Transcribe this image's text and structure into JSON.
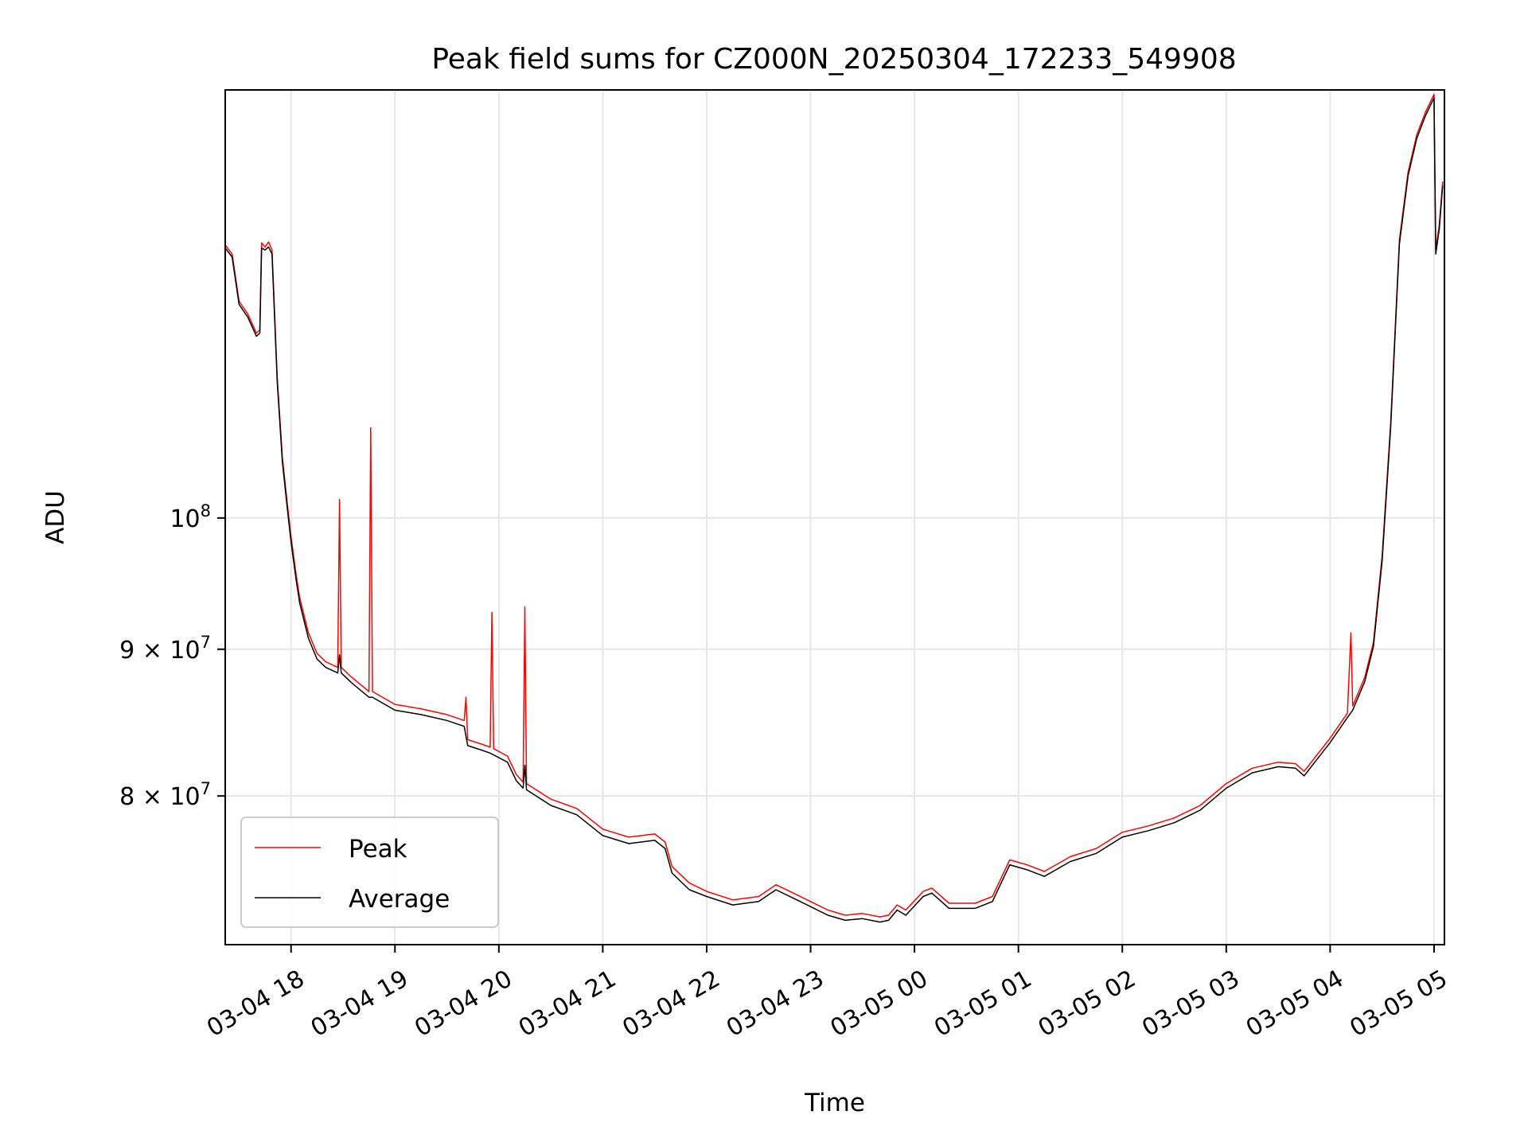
{
  "chart_data": {
    "type": "line",
    "title": "Peak field sums for CZ000N_20250304_172233_549908",
    "xlabel": "Time",
    "ylabel": "ADU",
    "x_axis": {
      "kind": "datetime",
      "start": "2025-03-04 17:22",
      "end": "2025-03-05 05:06",
      "ticks": [
        {
          "t": "2025-03-04 18:00",
          "label": "03-04 18"
        },
        {
          "t": "2025-03-04 19:00",
          "label": "03-04 19"
        },
        {
          "t": "2025-03-04 20:00",
          "label": "03-04 20"
        },
        {
          "t": "2025-03-04 21:00",
          "label": "03-04 21"
        },
        {
          "t": "2025-03-04 22:00",
          "label": "03-04 22"
        },
        {
          "t": "2025-03-04 23:00",
          "label": "03-04 23"
        },
        {
          "t": "2025-03-05 00:00",
          "label": "03-05 00"
        },
        {
          "t": "2025-03-05 01:00",
          "label": "03-05 01"
        },
        {
          "t": "2025-03-05 02:00",
          "label": "03-05 02"
        },
        {
          "t": "2025-03-05 03:00",
          "label": "03-05 03"
        },
        {
          "t": "2025-03-05 04:00",
          "label": "03-05 04"
        },
        {
          "t": "2025-03-05 05:00",
          "label": "03-05 05"
        }
      ]
    },
    "y_axis": {
      "scale": "log",
      "ylim": [
        71000000,
        141000000
      ],
      "ticks": [
        {
          "v": 80000000,
          "base": "8 × 10",
          "exp": "7"
        },
        {
          "v": 90000000,
          "base": "9 × 10",
          "exp": "7"
        },
        {
          "v": 100000000,
          "base": "10",
          "exp": "8"
        }
      ]
    },
    "grid": true,
    "legend": {
      "position": "lower-left"
    },
    "series": [
      {
        "name": "Peak",
        "color": "#ff0000",
        "points": [
          [
            "2025-03-04 17:22",
            124500000
          ],
          [
            "2025-03-04 17:26",
            123600000
          ],
          [
            "2025-03-04 17:30",
            119000000
          ],
          [
            "2025-03-04 17:35",
            117800000
          ],
          [
            "2025-03-04 17:40",
            116000000
          ],
          [
            "2025-03-04 17:42",
            116300000
          ],
          [
            "2025-03-04 17:43",
            124700000
          ],
          [
            "2025-03-04 17:45",
            124300000
          ],
          [
            "2025-03-04 17:47",
            124800000
          ],
          [
            "2025-03-04 17:49",
            124000000
          ],
          [
            "2025-03-04 17:52",
            112000000
          ],
          [
            "2025-03-04 17:55",
            105000000
          ],
          [
            "2025-03-04 17:58",
            101000000
          ],
          [
            "2025-03-04 18:00",
            98500000
          ],
          [
            "2025-03-04 18:03",
            95500000
          ],
          [
            "2025-03-04 18:05",
            93800000
          ],
          [
            "2025-03-04 18:10",
            91200000
          ],
          [
            "2025-03-04 18:15",
            89700000
          ],
          [
            "2025-03-04 18:20",
            89100000
          ],
          [
            "2025-03-04 18:27",
            88700000
          ],
          [
            "2025-03-04 18:28",
            101500000
          ],
          [
            "2025-03-04 18:29",
            88700000
          ],
          [
            "2025-03-04 18:35",
            88000000
          ],
          [
            "2025-03-04 18:45",
            87000000
          ],
          [
            "2025-03-04 18:46",
            107500000
          ],
          [
            "2025-03-04 18:47",
            87000000
          ],
          [
            "2025-03-04 19:00",
            86100000
          ],
          [
            "2025-03-04 19:15",
            85800000
          ],
          [
            "2025-03-04 19:30",
            85400000
          ],
          [
            "2025-03-04 19:40",
            85000000
          ],
          [
            "2025-03-04 19:41",
            86600000
          ],
          [
            "2025-03-04 19:42",
            83700000
          ],
          [
            "2025-03-04 19:50",
            83400000
          ],
          [
            "2025-03-04 19:55",
            83200000
          ],
          [
            "2025-03-04 19:56",
            92700000
          ],
          [
            "2025-03-04 19:57",
            83100000
          ],
          [
            "2025-03-04 20:05",
            82600000
          ],
          [
            "2025-03-04 20:10",
            81400000
          ],
          [
            "2025-03-04 20:14",
            80900000
          ],
          [
            "2025-03-04 20:15",
            93100000
          ],
          [
            "2025-03-04 20:16",
            80800000
          ],
          [
            "2025-03-04 20:30",
            79800000
          ],
          [
            "2025-03-04 20:45",
            79200000
          ],
          [
            "2025-03-04 21:00",
            77900000
          ],
          [
            "2025-03-04 21:15",
            77400000
          ],
          [
            "2025-03-04 21:30",
            77600000
          ],
          [
            "2025-03-04 21:36",
            77100000
          ],
          [
            "2025-03-04 21:40",
            75600000
          ],
          [
            "2025-03-04 21:50",
            74600000
          ],
          [
            "2025-03-04 22:00",
            74100000
          ],
          [
            "2025-03-04 22:15",
            73600000
          ],
          [
            "2025-03-04 22:30",
            73800000
          ],
          [
            "2025-03-04 22:40",
            74500000
          ],
          [
            "2025-03-04 22:50",
            74000000
          ],
          [
            "2025-03-04 23:00",
            73500000
          ],
          [
            "2025-03-04 23:10",
            73000000
          ],
          [
            "2025-03-04 23:20",
            72700000
          ],
          [
            "2025-03-04 23:30",
            72800000
          ],
          [
            "2025-03-04 23:40",
            72600000
          ],
          [
            "2025-03-04 23:45",
            72700000
          ],
          [
            "2025-03-04 23:50",
            73300000
          ],
          [
            "2025-03-04 23:55",
            73000000
          ],
          [
            "2025-03-05 00:05",
            74100000
          ],
          [
            "2025-03-05 00:10",
            74300000
          ],
          [
            "2025-03-05 00:20",
            73400000
          ],
          [
            "2025-03-05 00:35",
            73400000
          ],
          [
            "2025-03-05 00:45",
            73800000
          ],
          [
            "2025-03-05 00:55",
            76000000
          ],
          [
            "2025-03-05 01:05",
            75700000
          ],
          [
            "2025-03-05 01:15",
            75300000
          ],
          [
            "2025-03-05 01:30",
            76200000
          ],
          [
            "2025-03-05 01:45",
            76700000
          ],
          [
            "2025-03-05 02:00",
            77700000
          ],
          [
            "2025-03-05 02:15",
            78100000
          ],
          [
            "2025-03-05 02:30",
            78600000
          ],
          [
            "2025-03-05 02:45",
            79400000
          ],
          [
            "2025-03-05 03:00",
            80800000
          ],
          [
            "2025-03-05 03:15",
            81800000
          ],
          [
            "2025-03-05 03:30",
            82200000
          ],
          [
            "2025-03-05 03:40",
            82100000
          ],
          [
            "2025-03-05 03:45",
            81600000
          ],
          [
            "2025-03-05 04:00",
            83800000
          ],
          [
            "2025-03-05 04:10",
            85500000
          ],
          [
            "2025-03-05 04:12",
            91200000
          ],
          [
            "2025-03-05 04:13",
            86000000
          ],
          [
            "2025-03-05 04:20",
            88000000
          ],
          [
            "2025-03-05 04:25",
            90500000
          ],
          [
            "2025-03-05 04:30",
            97000000
          ],
          [
            "2025-03-05 04:35",
            108000000
          ],
          [
            "2025-03-05 04:40",
            125000000
          ],
          [
            "2025-03-05 04:45",
            132000000
          ],
          [
            "2025-03-05 04:50",
            136000000
          ],
          [
            "2025-03-05 04:55",
            138500000
          ],
          [
            "2025-03-05 05:00",
            140500000
          ],
          [
            "2025-03-05 05:01",
            124000000
          ],
          [
            "2025-03-05 05:03",
            126500000
          ],
          [
            "2025-03-05 05:05",
            131000000
          ]
        ]
      },
      {
        "name": "Average",
        "color": "#000000",
        "points": [
          [
            "2025-03-04 17:22",
            124200000
          ],
          [
            "2025-03-04 17:26",
            123300000
          ],
          [
            "2025-03-04 17:30",
            118700000
          ],
          [
            "2025-03-04 17:35",
            117500000
          ],
          [
            "2025-03-04 17:40",
            115700000
          ],
          [
            "2025-03-04 17:42",
            116000000
          ],
          [
            "2025-03-04 17:43",
            124200000
          ],
          [
            "2025-03-04 17:45",
            124000000
          ],
          [
            "2025-03-04 17:47",
            124300000
          ],
          [
            "2025-03-04 17:49",
            123600000
          ],
          [
            "2025-03-04 17:52",
            111600000
          ],
          [
            "2025-03-04 17:55",
            104600000
          ],
          [
            "2025-03-04 17:58",
            100600000
          ],
          [
            "2025-03-04 18:00",
            98100000
          ],
          [
            "2025-03-04 18:03",
            95100000
          ],
          [
            "2025-03-04 18:05",
            93400000
          ],
          [
            "2025-03-04 18:10",
            90800000
          ],
          [
            "2025-03-04 18:15",
            89300000
          ],
          [
            "2025-03-04 18:20",
            88700000
          ],
          [
            "2025-03-04 18:27",
            88300000
          ],
          [
            "2025-03-04 18:28",
            89600000
          ],
          [
            "2025-03-04 18:29",
            88300000
          ],
          [
            "2025-03-04 18:35",
            87600000
          ],
          [
            "2025-03-04 18:45",
            86600000
          ],
          [
            "2025-03-04 18:47",
            86600000
          ],
          [
            "2025-03-04 19:00",
            85700000
          ],
          [
            "2025-03-04 19:15",
            85400000
          ],
          [
            "2025-03-04 19:30",
            85000000
          ],
          [
            "2025-03-04 19:40",
            84600000
          ],
          [
            "2025-03-04 19:42",
            83300000
          ],
          [
            "2025-03-04 19:50",
            83000000
          ],
          [
            "2025-03-04 19:55",
            82800000
          ],
          [
            "2025-03-04 20:05",
            82200000
          ],
          [
            "2025-03-04 20:10",
            81000000
          ],
          [
            "2025-03-04 20:14",
            80500000
          ],
          [
            "2025-03-04 20:15",
            82000000
          ],
          [
            "2025-03-04 20:16",
            80400000
          ],
          [
            "2025-03-04 20:30",
            79400000
          ],
          [
            "2025-03-04 20:45",
            78800000
          ],
          [
            "2025-03-04 21:00",
            77500000
          ],
          [
            "2025-03-04 21:15",
            77000000
          ],
          [
            "2025-03-04 21:30",
            77200000
          ],
          [
            "2025-03-04 21:36",
            76700000
          ],
          [
            "2025-03-04 21:40",
            75200000
          ],
          [
            "2025-03-04 21:50",
            74200000
          ],
          [
            "2025-03-04 22:00",
            73800000
          ],
          [
            "2025-03-04 22:15",
            73300000
          ],
          [
            "2025-03-04 22:30",
            73500000
          ],
          [
            "2025-03-04 22:40",
            74200000
          ],
          [
            "2025-03-04 22:50",
            73700000
          ],
          [
            "2025-03-04 23:00",
            73200000
          ],
          [
            "2025-03-04 23:10",
            72700000
          ],
          [
            "2025-03-04 23:20",
            72400000
          ],
          [
            "2025-03-04 23:30",
            72500000
          ],
          [
            "2025-03-04 23:40",
            72300000
          ],
          [
            "2025-03-04 23:45",
            72400000
          ],
          [
            "2025-03-04 23:50",
            73000000
          ],
          [
            "2025-03-04 23:55",
            72700000
          ],
          [
            "2025-03-05 00:05",
            73800000
          ],
          [
            "2025-03-05 00:10",
            74000000
          ],
          [
            "2025-03-05 00:20",
            73100000
          ],
          [
            "2025-03-05 00:35",
            73100000
          ],
          [
            "2025-03-05 00:45",
            73500000
          ],
          [
            "2025-03-05 00:55",
            75700000
          ],
          [
            "2025-03-05 01:05",
            75400000
          ],
          [
            "2025-03-05 01:15",
            75000000
          ],
          [
            "2025-03-05 01:30",
            75900000
          ],
          [
            "2025-03-05 01:45",
            76400000
          ],
          [
            "2025-03-05 02:00",
            77400000
          ],
          [
            "2025-03-05 02:15",
            77800000
          ],
          [
            "2025-03-05 02:30",
            78300000
          ],
          [
            "2025-03-05 02:45",
            79100000
          ],
          [
            "2025-03-05 03:00",
            80500000
          ],
          [
            "2025-03-05 03:15",
            81500000
          ],
          [
            "2025-03-05 03:30",
            81900000
          ],
          [
            "2025-03-05 03:40",
            81800000
          ],
          [
            "2025-03-05 03:45",
            81300000
          ],
          [
            "2025-03-05 04:00",
            83500000
          ],
          [
            "2025-03-05 04:10",
            85200000
          ],
          [
            "2025-03-05 04:13",
            85700000
          ],
          [
            "2025-03-05 04:20",
            87700000
          ],
          [
            "2025-03-05 04:25",
            90200000
          ],
          [
            "2025-03-05 04:30",
            96600000
          ],
          [
            "2025-03-05 04:35",
            107600000
          ],
          [
            "2025-03-05 04:40",
            124600000
          ],
          [
            "2025-03-05 04:45",
            131600000
          ],
          [
            "2025-03-05 04:50",
            135600000
          ],
          [
            "2025-03-05 04:55",
            138100000
          ],
          [
            "2025-03-05 05:00",
            140100000
          ],
          [
            "2025-03-05 05:01",
            123600000
          ],
          [
            "2025-03-05 05:03",
            126100000
          ],
          [
            "2025-03-05 05:05",
            130600000
          ]
        ]
      }
    ]
  }
}
